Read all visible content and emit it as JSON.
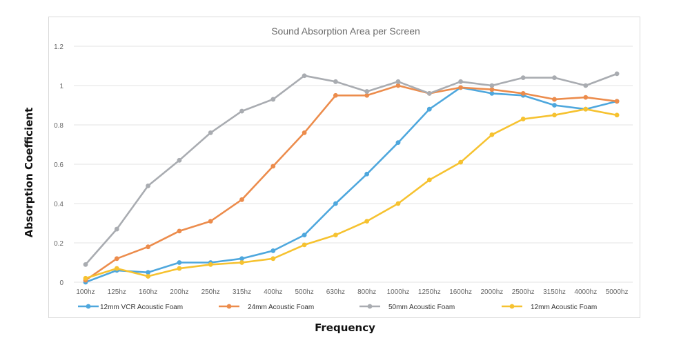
{
  "chart_data": {
    "type": "line",
    "title": "Sound Absorption Area per Screen",
    "xlabel": "Frequency",
    "ylabel": "Absorption Coefficient",
    "ylim": [
      0,
      1.2
    ],
    "yticks": [
      "0",
      "0.2",
      "0.4",
      "0.6",
      "0.8",
      "1",
      "1.2"
    ],
    "grid": true,
    "legend_position": "bottom",
    "categories": [
      "100hz",
      "125hz",
      "160hz",
      "200hz",
      "250hz",
      "315hz",
      "400hz",
      "500hz",
      "630hz",
      "800hz",
      "1000hz",
      "1250hz",
      "1600hz",
      "2000hz",
      "2500hz",
      "3150hz",
      "4000hz",
      "5000hz"
    ],
    "series": [
      {
        "name": "12mm VCR Acoustic Foam",
        "color": "#4ea7dd",
        "values": [
          0.0,
          0.06,
          0.05,
          0.1,
          0.1,
          0.12,
          0.16,
          0.24,
          0.4,
          0.55,
          0.71,
          0.88,
          0.99,
          0.96,
          0.95,
          0.9,
          0.88,
          0.92
        ]
      },
      {
        "name": "24mm Acoustic Foam",
        "color": "#ec8c4c",
        "values": [
          0.01,
          0.12,
          0.18,
          0.26,
          0.31,
          0.42,
          0.59,
          0.76,
          0.95,
          0.95,
          1.0,
          0.96,
          0.99,
          0.98,
          0.96,
          0.93,
          0.94,
          0.92
        ]
      },
      {
        "name": "50mm Acoustic Foam",
        "color": "#a9acb1",
        "values": [
          0.09,
          0.27,
          0.49,
          0.62,
          0.76,
          0.87,
          0.93,
          1.05,
          1.02,
          0.97,
          1.02,
          0.96,
          1.02,
          1.0,
          1.04,
          1.04,
          1.0,
          1.06
        ]
      },
      {
        "name": "12mm Acoustic Foam",
        "color": "#f6c230",
        "values": [
          0.02,
          0.07,
          0.03,
          0.07,
          0.09,
          0.1,
          0.12,
          0.19,
          0.24,
          0.31,
          0.4,
          0.52,
          0.61,
          0.75,
          0.83,
          0.85,
          0.88,
          0.85
        ]
      }
    ]
  }
}
